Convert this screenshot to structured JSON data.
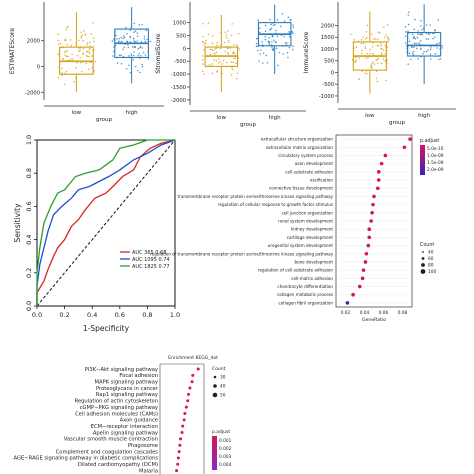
{
  "colors": {
    "low": "#d4a017",
    "high": "#2b7bbf",
    "roc_red": "#d62728",
    "roc_blue": "#1f4fd0",
    "roc_green": "#2ca02c",
    "padj_high": "#d6155a",
    "padj_low": "#3a1fbf"
  },
  "chart_data": [
    {
      "type": "box",
      "ylabel": "ESTIMATEScore",
      "xlabel": "group",
      "categories": [
        "low",
        "high"
      ],
      "ylim": [
        -2600,
        5000
      ],
      "yticks": [
        -2000,
        0,
        2000
      ],
      "series": [
        {
          "name": "low",
          "min": -2000,
          "q1": -600,
          "median": 400,
          "q3": 1500,
          "max": 4200
        },
        {
          "name": "high",
          "min": -1300,
          "q1": 700,
          "median": 1800,
          "q3": 2900,
          "max": 4600
        }
      ]
    },
    {
      "type": "box",
      "ylabel": "StromalScore",
      "xlabel": "group",
      "categories": [
        "low",
        "high"
      ],
      "ylim": [
        -2200,
        1800
      ],
      "yticks": [
        -2000,
        -1500,
        -1000,
        -500,
        0,
        500,
        1000
      ],
      "series": [
        {
          "name": "low",
          "min": -1700,
          "q1": -700,
          "median": -300,
          "q3": 50,
          "max": 1300
        },
        {
          "name": "high",
          "min": -1000,
          "q1": 100,
          "median": 550,
          "q3": 1000,
          "max": 1700
        }
      ]
    },
    {
      "type": "box",
      "ylabel": "ImmuneScore",
      "xlabel": "group",
      "categories": [
        "low",
        "high"
      ],
      "ylim": [
        -1300,
        3000
      ],
      "yticks": [
        -1000,
        -500,
        0,
        500,
        1000,
        1500,
        2000
      ],
      "series": [
        {
          "name": "low",
          "min": -900,
          "q1": 100,
          "median": 700,
          "q3": 1300,
          "max": 2600
        },
        {
          "name": "high",
          "min": -500,
          "q1": 700,
          "median": 1150,
          "q3": 1700,
          "max": 2900
        }
      ]
    },
    {
      "type": "line",
      "xlabel": "1-Specificity",
      "ylabel": "Sensitivity",
      "xlim": [
        0,
        1
      ],
      "ylim": [
        0,
        1
      ],
      "xticks": [
        "0.0",
        "0.2",
        "0.4",
        "0.6",
        "0.8",
        "1.0"
      ],
      "yticks": [
        "0.0",
        "0.2",
        "0.4",
        "0.6",
        "0.8",
        "1.0"
      ],
      "series": [
        {
          "name": "AUC 365 0.68",
          "color": "#d62728",
          "points": [
            [
              0,
              0
            ],
            [
              0,
              0.08
            ],
            [
              0.05,
              0.15
            ],
            [
              0.08,
              0.22
            ],
            [
              0.12,
              0.3
            ],
            [
              0.15,
              0.35
            ],
            [
              0.2,
              0.4
            ],
            [
              0.25,
              0.48
            ],
            [
              0.3,
              0.52
            ],
            [
              0.35,
              0.58
            ],
            [
              0.42,
              0.65
            ],
            [
              0.5,
              0.68
            ],
            [
              0.55,
              0.72
            ],
            [
              0.62,
              0.78
            ],
            [
              0.7,
              0.82
            ],
            [
              0.75,
              0.9
            ],
            [
              0.82,
              0.95
            ],
            [
              0.9,
              0.98
            ],
            [
              1,
              1
            ]
          ]
        },
        {
          "name": "AUC 1095 0.74",
          "color": "#1f4fd0",
          "points": [
            [
              0,
              0
            ],
            [
              0,
              0.12
            ],
            [
              0.02,
              0.25
            ],
            [
              0.05,
              0.35
            ],
            [
              0.08,
              0.45
            ],
            [
              0.12,
              0.55
            ],
            [
              0.18,
              0.6
            ],
            [
              0.25,
              0.65
            ],
            [
              0.3,
              0.7
            ],
            [
              0.38,
              0.72
            ],
            [
              0.45,
              0.75
            ],
            [
              0.52,
              0.78
            ],
            [
              0.6,
              0.82
            ],
            [
              0.7,
              0.88
            ],
            [
              0.8,
              0.92
            ],
            [
              0.9,
              0.97
            ],
            [
              1,
              1
            ]
          ]
        },
        {
          "name": "AUC 1825 0.77",
          "color": "#2ca02c",
          "points": [
            [
              0,
              0
            ],
            [
              0,
              0.2
            ],
            [
              0.02,
              0.35
            ],
            [
              0.05,
              0.5
            ],
            [
              0.1,
              0.6
            ],
            [
              0.15,
              0.68
            ],
            [
              0.2,
              0.7
            ],
            [
              0.28,
              0.78
            ],
            [
              0.35,
              0.8
            ],
            [
              0.45,
              0.82
            ],
            [
              0.55,
              0.88
            ],
            [
              0.6,
              0.95
            ],
            [
              0.7,
              0.97
            ],
            [
              0.8,
              1
            ],
            [
              1,
              1
            ]
          ]
        }
      ],
      "reference": "diagonal",
      "legend": "bottom-right"
    },
    {
      "type": "scatter",
      "xlabel": "GeneRatio",
      "xlim": [
        0.01,
        0.09
      ],
      "xticks": [
        "0.02",
        "0.04",
        "0.06",
        "0.08"
      ],
      "legend_title_color": "p.adjust",
      "legend_color_labels": [
        "5.0e-10",
        "1.0e-09",
        "1.5e-09",
        "2.0e-09"
      ],
      "legend_title_size": "Count",
      "legend_size_labels": [
        "40",
        "60",
        "80",
        "100"
      ],
      "categories": [
        "extracellular structure organization",
        "extracellular matrix organization",
        "circulatory system process",
        "axon development",
        "cell-substrate adhesion",
        "ossification",
        "connective tissue development",
        "transmembrane receptor protein serine/threonine kinase signaling pathway",
        "regulation of cellular response to growth factor stimulus",
        "cell junction organization",
        "renal system development",
        "kidney development",
        "cartilage development",
        "urogenital system development",
        "regulation of transmembrane receptor protein serine/threonine kinase signaling pathway",
        "bone development",
        "regulation of cell-substrate adhesion",
        "cell-matrix adhesion",
        "chondrocyte differentiation",
        "collagen metabolic process",
        "collagen fibril organization"
      ],
      "x": [
        0.088,
        0.082,
        0.062,
        0.058,
        0.055,
        0.055,
        0.054,
        0.05,
        0.049,
        0.048,
        0.047,
        0.045,
        0.045,
        0.044,
        0.042,
        0.041,
        0.039,
        0.038,
        0.035,
        0.028,
        0.022
      ],
      "padj": [
        "high",
        "high",
        "high",
        "high",
        "high",
        "high",
        "high",
        "high",
        "high",
        "high",
        "high",
        "high",
        "high",
        "high",
        "high",
        "high",
        "high",
        "high",
        "high",
        "high",
        "low"
      ]
    },
    {
      "type": "scatter",
      "title": "Enrichment KEGG_dot",
      "legend_title_size": "Count",
      "legend_size_labels": [
        "30",
        "40",
        "50"
      ],
      "legend_title_color": "p.adjust",
      "legend_color_labels": [
        "0.001",
        "0.002",
        "0.003",
        "0.004"
      ],
      "categories": [
        "PI3K−Akt signaling pathway",
        "Focal adhesion",
        "MAPK signaling pathway",
        "Proteoglycans in cancer",
        "Rap1 signaling pathway",
        "Regulation of actin cytoskeleton",
        "cGMP−PKG signaling pathway",
        "Cell adhesion molecules (CAMs)",
        "Axon guidance",
        "ECM−receptor interaction",
        "Apelin signaling pathway",
        "Vascular smooth muscle contraction",
        "Phagosome",
        "Complement and coagulation cascades",
        "AGE−RAGE signaling pathway in diabetic complications",
        "Dilated cardiomyopathy (DCM)",
        "Malaria"
      ],
      "x": [
        0.95,
        0.8,
        0.78,
        0.72,
        0.68,
        0.66,
        0.62,
        0.58,
        0.56,
        0.52,
        0.5,
        0.46,
        0.44,
        0.42,
        0.4,
        0.38,
        0.35
      ]
    }
  ]
}
